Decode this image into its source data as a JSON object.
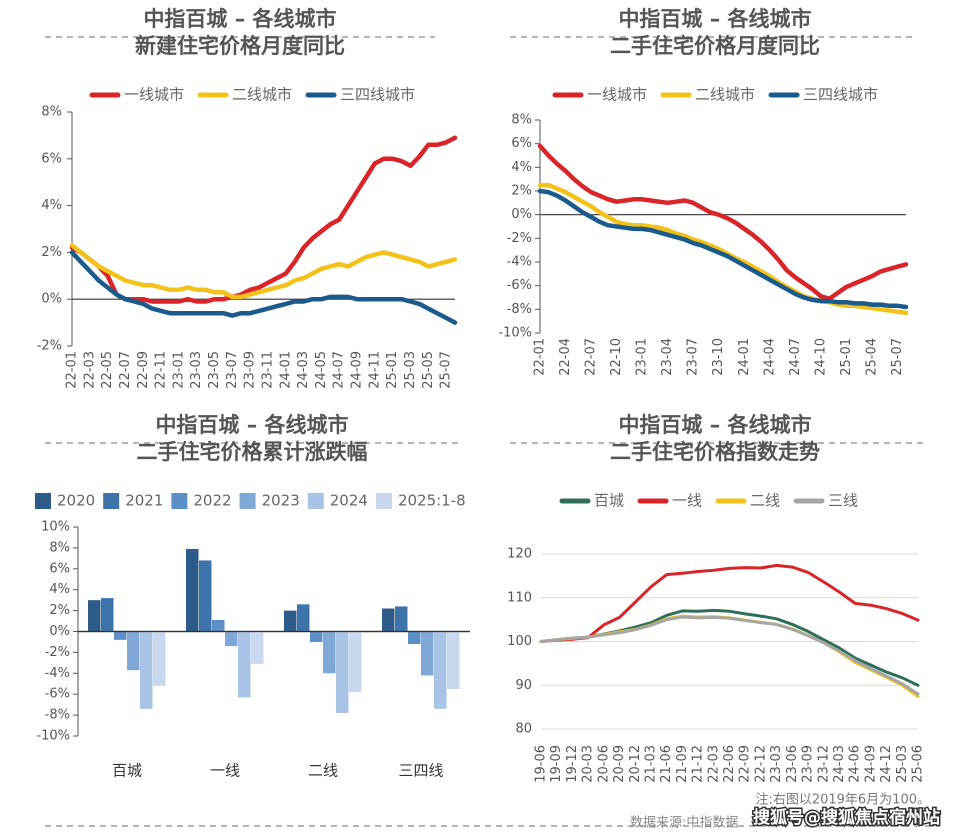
{
  "chart_data": [
    {
      "type": "line",
      "title": "中指百城 – 各线城市",
      "subtitle": "新建住宅价格月度同比",
      "legend": "top",
      "categories": [
        "22-01",
        null,
        "22-03",
        null,
        "22-05",
        null,
        "22-07",
        null,
        "22-09",
        null,
        "22-11",
        null,
        "23-01",
        null,
        "23-03",
        null,
        "23-05",
        null,
        "23-07",
        null,
        "23-09",
        null,
        "23-11",
        null,
        "24-01",
        null,
        "24-03",
        null,
        "24-05",
        null,
        "24-07",
        null,
        "24-09",
        null,
        "24-11",
        null,
        "25-01",
        null,
        "25-03",
        null,
        "25-05",
        null,
        "25-07",
        null
      ],
      "series": [
        {
          "name": "一线城市",
          "color": "#d9242a",
          "values": [
            2.2,
            2.0,
            1.7,
            1.4,
            1.0,
            0.2,
            0,
            0,
            0,
            -0.1,
            -0.1,
            -0.1,
            -0.1,
            0,
            -0.1,
            -0.1,
            0,
            0,
            0.1,
            0.2,
            0.4,
            0.5,
            0.7,
            0.9,
            1.1,
            1.6,
            2.2,
            2.6,
            2.9,
            3.2,
            3.4,
            4.0,
            4.6,
            5.2,
            5.8,
            6.0,
            6.0,
            5.9,
            5.7,
            6.1,
            6.6,
            6.6,
            6.7,
            6.9
          ]
        },
        {
          "name": "二线城市",
          "color": "#f2c21b",
          "values": [
            2.3,
            2.0,
            1.7,
            1.4,
            1.2,
            1.0,
            0.8,
            0.7,
            0.6,
            0.6,
            0.5,
            0.4,
            0.4,
            0.5,
            0.4,
            0.4,
            0.3,
            0.3,
            0.1,
            0.1,
            0.2,
            0.3,
            0.4,
            0.5,
            0.6,
            0.8,
            0.9,
            1.1,
            1.3,
            1.4,
            1.5,
            1.4,
            1.6,
            1.8,
            1.9,
            2.0,
            1.9,
            1.8,
            1.7,
            1.6,
            1.4,
            1.5,
            1.6,
            1.7
          ]
        },
        {
          "name": "三四线城市",
          "color": "#1b5a8c",
          "values": [
            2.0,
            1.6,
            1.2,
            0.8,
            0.5,
            0.2,
            0,
            -0.1,
            -0.2,
            -0.4,
            -0.5,
            -0.6,
            -0.6,
            -0.6,
            -0.6,
            -0.6,
            -0.6,
            -0.6,
            -0.7,
            -0.6,
            -0.6,
            -0.5,
            -0.4,
            -0.3,
            -0.2,
            -0.1,
            -0.1,
            0,
            0,
            0.1,
            0.1,
            0.1,
            0,
            0,
            0,
            0,
            0,
            0,
            -0.1,
            -0.2,
            -0.4,
            -0.6,
            -0.8,
            -1.0
          ]
        }
      ],
      "ylim": [
        -2,
        8
      ],
      "yticks": [
        {
          "value": -2,
          "label": "-2%"
        },
        {
          "value": 0,
          "label": "0%"
        },
        {
          "value": 2,
          "label": "2%"
        },
        {
          "value": 4,
          "label": "4%"
        },
        {
          "value": 6,
          "label": "6%"
        },
        {
          "value": 8,
          "label": "8%"
        }
      ],
      "grid": false
    },
    {
      "type": "line",
      "title": "中指百城 – 各线城市",
      "subtitle": "二手住宅价格月度同比",
      "legend": "top",
      "categories": [
        "22-01",
        null,
        null,
        "22-04",
        null,
        null,
        "22-07",
        null,
        null,
        "22-10",
        null,
        null,
        "23-01",
        null,
        null,
        "23-04",
        null,
        null,
        "23-07",
        null,
        null,
        "23-10",
        null,
        null,
        "24-01",
        null,
        null,
        "24-04",
        null,
        null,
        "24-07",
        null,
        null,
        "24-10",
        null,
        null,
        "25-01",
        null,
        null,
        "25-04",
        null,
        null,
        "25-07",
        null
      ],
      "series": [
        {
          "name": "一线城市",
          "color": "#d9242a",
          "values": [
            5.8,
            5.0,
            4.3,
            3.7,
            3.0,
            2.4,
            1.9,
            1.6,
            1.3,
            1.1,
            1.2,
            1.3,
            1.3,
            1.2,
            1.1,
            1.0,
            1.1,
            1.2,
            1.0,
            0.6,
            0.2,
            0,
            -0.3,
            -0.7,
            -1.2,
            -1.7,
            -2.3,
            -3.0,
            -3.8,
            -4.7,
            -5.3,
            -5.8,
            -6.3,
            -6.9,
            -7.1,
            -6.6,
            -6.1,
            -5.8,
            -5.5,
            -5.2,
            -4.8,
            -4.6,
            -4.4,
            -4.2
          ]
        },
        {
          "name": "二线城市",
          "color": "#f2c21b",
          "values": [
            2.5,
            2.5,
            2.2,
            1.9,
            1.5,
            1.1,
            0.7,
            0.2,
            -0.2,
            -0.6,
            -0.8,
            -0.9,
            -0.9,
            -1.0,
            -1.1,
            -1.3,
            -1.6,
            -1.8,
            -2.1,
            -2.3,
            -2.6,
            -2.9,
            -3.3,
            -3.7,
            -4.0,
            -4.4,
            -4.8,
            -5.2,
            -5.7,
            -6.1,
            -6.5,
            -6.9,
            -7.1,
            -7.3,
            -7.4,
            -7.6,
            -7.7,
            -7.7,
            -7.8,
            -7.9,
            -8.0,
            -8.1,
            -8.2,
            -8.3
          ]
        },
        {
          "name": "三四线城市",
          "color": "#1b5a8c",
          "values": [
            2.0,
            1.9,
            1.6,
            1.2,
            0.7,
            0.2,
            -0.2,
            -0.6,
            -0.9,
            -1.0,
            -1.1,
            -1.2,
            -1.2,
            -1.3,
            -1.5,
            -1.7,
            -1.9,
            -2.1,
            -2.4,
            -2.6,
            -2.9,
            -3.2,
            -3.5,
            -3.9,
            -4.3,
            -4.7,
            -5.1,
            -5.5,
            -5.9,
            -6.3,
            -6.7,
            -7.0,
            -7.2,
            -7.3,
            -7.3,
            -7.4,
            -7.4,
            -7.5,
            -7.5,
            -7.6,
            -7.6,
            -7.7,
            -7.7,
            -7.8
          ]
        }
      ],
      "ylim": [
        -10,
        8
      ],
      "yticks": [
        {
          "value": -10,
          "label": "-10%"
        },
        {
          "value": -8,
          "label": "-8%"
        },
        {
          "value": -6,
          "label": "-6%"
        },
        {
          "value": -4,
          "label": "-4%"
        },
        {
          "value": -2,
          "label": "-2%"
        },
        {
          "value": 0,
          "label": "0%"
        },
        {
          "value": 2,
          "label": "2%"
        },
        {
          "value": 4,
          "label": "4%"
        },
        {
          "value": 6,
          "label": "6%"
        },
        {
          "value": 8,
          "label": "8%"
        }
      ],
      "grid": false
    },
    {
      "type": "bar",
      "title": "中指百城 – 各线城市",
      "subtitle": "二手住宅价格累计涨跌幅",
      "legend": "top",
      "categories": [
        "百城",
        "一线",
        "二线",
        "三四线"
      ],
      "series": [
        {
          "name": "2020",
          "color": "#2e5c8a",
          "values": [
            3.0,
            7.9,
            2.0,
            2.2
          ]
        },
        {
          "name": "2021",
          "color": "#3f74aa",
          "values": [
            3.2,
            6.8,
            2.6,
            2.4
          ]
        },
        {
          "name": "2022",
          "color": "#5b8fc6",
          "values": [
            -0.8,
            1.1,
            -1.0,
            -1.2
          ]
        },
        {
          "name": "2023",
          "color": "#7fa8d6",
          "values": [
            -3.7,
            -1.4,
            -4.0,
            -4.2
          ]
        },
        {
          "name": "2024",
          "color": "#a8c3e5",
          "values": [
            -7.4,
            -6.3,
            -7.8,
            -7.4
          ]
        },
        {
          "name": "2025:1-8",
          "color": "#c9d8ee",
          "values": [
            -5.2,
            -3.1,
            -5.8,
            -5.5
          ]
        }
      ],
      "ylim": [
        -10,
        10
      ],
      "yticks": [
        {
          "value": -10,
          "label": "-10%"
        },
        {
          "value": -8,
          "label": "-8%"
        },
        {
          "value": -6,
          "label": "-6%"
        },
        {
          "value": -4,
          "label": "-4%"
        },
        {
          "value": -2,
          "label": "-2%"
        },
        {
          "value": 0,
          "label": "0%"
        },
        {
          "value": 2,
          "label": "2%"
        },
        {
          "value": 4,
          "label": "4%"
        },
        {
          "value": 6,
          "label": "6%"
        },
        {
          "value": 8,
          "label": "8%"
        },
        {
          "value": 10,
          "label": "10%"
        }
      ],
      "grid": false
    },
    {
      "type": "line",
      "title": "中指百城 – 各线城市",
      "subtitle": "二手住宅价格指数走势",
      "legend": "top",
      "categories": [
        "19-06",
        "19-09",
        "19-12",
        "20-03",
        "20-06",
        "20-09",
        "20-12",
        "21-03",
        "21-06",
        "21-09",
        "21-12",
        "22-03",
        "22-06",
        "22-09",
        "22-12",
        "23-03",
        "23-06",
        "23-09",
        "23-12",
        "24-03",
        "24-06",
        "24-09",
        "24-12",
        "25-03",
        "25-06"
      ],
      "series": [
        {
          "name": "百城",
          "color": "#2e6e5a",
          "values": [
            100,
            100.4,
            100.7,
            101.0,
            101.7,
            102.4,
            103.3,
            104.3,
            106.0,
            107.0,
            106.9,
            107.1,
            106.9,
            106.3,
            105.8,
            105.2,
            103.9,
            102.3,
            100.4,
            98.5,
            96.2,
            94.6,
            93.0,
            91.7,
            90.0
          ]
        },
        {
          "name": "一线",
          "color": "#d9242a",
          "values": [
            100,
            100.3,
            100.5,
            100.9,
            103.8,
            105.5,
            109.0,
            112.5,
            115.3,
            115.6,
            116.0,
            116.3,
            116.7,
            116.9,
            116.8,
            117.4,
            117.0,
            115.8,
            113.6,
            111.3,
            108.7,
            108.3,
            107.5,
            106.4,
            104.9
          ]
        },
        {
          "name": "二线",
          "color": "#f2c21b",
          "values": [
            100,
            100.4,
            100.7,
            101.0,
            101.6,
            102.2,
            102.8,
            103.8,
            105.2,
            105.8,
            105.6,
            105.7,
            105.4,
            104.9,
            104.4,
            103.9,
            102.9,
            101.4,
            99.7,
            97.6,
            95.2,
            93.5,
            91.8,
            90.0,
            87.4
          ]
        },
        {
          "name": "三线",
          "color": "#a6a6a6",
          "values": [
            100,
            100.4,
            100.8,
            101.0,
            101.5,
            102.0,
            102.7,
            103.7,
            105.0,
            105.6,
            105.4,
            105.5,
            105.3,
            104.8,
            104.3,
            103.9,
            102.8,
            101.3,
            99.7,
            97.8,
            95.6,
            93.8,
            92.1,
            90.3,
            88.0
          ]
        }
      ],
      "ylim": [
        80,
        120
      ],
      "yticks": [
        80,
        90,
        100,
        110,
        120
      ],
      "grid": true
    }
  ],
  "note": "注:右图以2019年6月为100。",
  "source": "数据来源:中指数据",
  "watermark": "搜狐号@搜狐焦点宿州站"
}
